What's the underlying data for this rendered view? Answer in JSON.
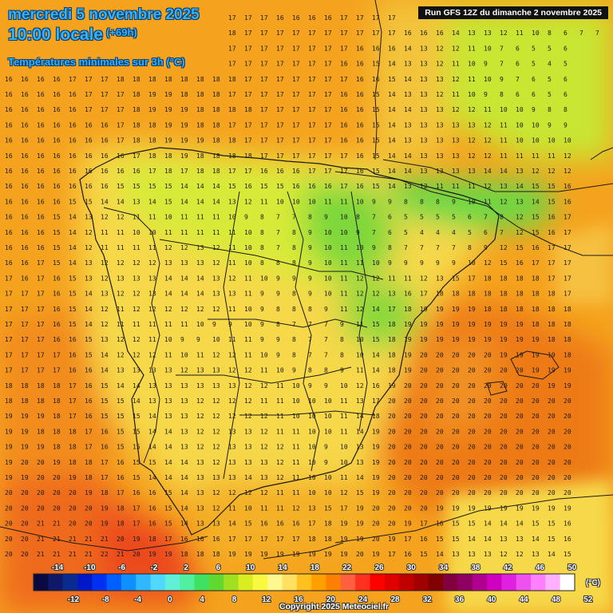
{
  "header": {
    "date": "mercredi 5 novembre 2025",
    "time": "10:00 locale",
    "lead": "(+69h)",
    "parameter": "Températures minimales sur 3h (°C)",
    "run": "Run GFS 12Z du dimanche 2 novembre 2025"
  },
  "footer": {
    "copyright": "Copyright 2025 Meteociel.fr"
  },
  "legend": {
    "unit": "(°C)",
    "colors": [
      "#0a0a40",
      "#10186a",
      "#0a2a90",
      "#0018c8",
      "#0030f0",
      "#0060ff",
      "#1090ff",
      "#30b8ff",
      "#50d8ff",
      "#60f0d8",
      "#50f0a0",
      "#40e060",
      "#60d830",
      "#a0e020",
      "#d8ee20",
      "#f8f840",
      "#fff890",
      "#ffe060",
      "#ffc020",
      "#ffa000",
      "#ff8000",
      "#ff6040",
      "#ff3020",
      "#ff0000",
      "#e00000",
      "#c00000",
      "#a00000",
      "#800000",
      "#800040",
      "#900060",
      "#b00090",
      "#d000c0",
      "#e020e0",
      "#f050f0",
      "#ff80ff",
      "#ffb0ff",
      "#ffffff"
    ],
    "top_labels": [
      "-14",
      "-10",
      "-6",
      "-2",
      "2",
      "6",
      "10",
      "14",
      "18",
      "22",
      "26",
      "30",
      "34",
      "38",
      "42",
      "46",
      "50"
    ],
    "bottom_labels": [
      "-12",
      "-8",
      "-4",
      "0",
      "4",
      "8",
      "12",
      "16",
      "20",
      "24",
      "28",
      "32",
      "36",
      "40",
      "44",
      "48",
      "52"
    ]
  },
  "grid_values": [
    "15 16 16 16 16 17 17 17 17 17 17 17 17 17 17 17 17 16 16 16 16 17 17 17 17 16 16 16 14 13 12 11 10 8 7 7 6 6 7 7",
    "15 15 16 16 16 16 17 17 17 17 17 18 18 18 18 17 17 17 17 17 17 17 17 17 17 16 16 16 14 13 13 12 11 10 8 6 7 7 6 7",
    "16 16 16 16 17 17 17 18 18 18 18 18 18 17 17 17 17 17 17 17 17 17 16 16 16 14 13 12 12 11 10 7 6 5 5 6",
    "16 16 16 17 17 17 18 18 18 18 18 18 17 17 17 17 17 17 17 17 17 16 16 15 14 13 13 12 11 10 9 7 6 5 4 5",
    "16 16 16 16 17 17 17 18 18 18 18 18 18 18 18 17 17 17 17 17 17 17 16 16 15 14 13 13 12 11 10 9 7 6 5 6",
    "16 16 16 16 16 17 17 17 18 19 19 18 18 18 17 17 17 17 17 17 17 16 16 15 14 13 13 12 11 10 9 8 6 6 5 6",
    "16 16 16 16 16 17 17 17 18 19 19 19 18 18 18 18 17 17 17 17 17 16 16 15 14 14 13 13 12 12 11 10 10 9 8 8",
    "16 16 16 16 16 16 16 17 18 18 19 19 18 18 17 17 17 17 17 17 17 16 16 15 14 13 13 13 13 13 12 11 10 10 9 9",
    "16 16 16 16 16 16 16 17 18 18 19 19 19 18 18 17 17 17 17 17 17 16 16 15 14 13 13 13 13 12 12 11 10 10 10 10",
    "16 16 16 16 16 16 16 16 17 18 18 19 18 18 18 18 17 17 17 17 17 17 16 15 14 14 13 13 13 12 12 11 11 11 11 12",
    "16 16 16 16 16 16 16 16 16 17 18 17 18 18 17 17 16 16 16 17 17 17 16 15 14 14 13 13 13 13 14 14 13 12 12 12",
    "16 16 16 16 16 16 16 15 15 15 15 14 14 14 15 16 15 15 16 16 16 17 16 15 14 13 12 11 11 11 12 13 14 15 15 16",
    "16 16 16 16 15 15 14 14 13 14 15 14 14 14 13 12 11 10 10 10 11 11 10 9 9 8 8 8 9 10 11 12 13 14 15 16",
    "16 16 16 15 14 13 12 12 11 11 10 11 11 11 10 9 8 7 7 8 9 10 8 7 6 5 5 5 5 6 7 8 12 15 16 17",
    "16 16 16 15 14 12 11 11 10 10 11 11 11 11 11 10 8 7 8 9 10 10 9 7 6 5 4 4 4 5 6 7 12 15 16 17",
    "16 16 16 15 14 12 11 11 11 11 12 12 13 12 11 10 8 7 8 9 10 11 10 9 8 7 7 7 7 8 9 12 15 16 17 17",
    "16 16 17 15 14 13 12 12 12 12 13 13 13 12 11 10 8 8 8 9 10 11 11 10 9 9 9 9 9 10 12 15 16 17 17 17",
    "17 16 17 16 15 13 12 13 13 13 14 14 14 13 12 11 10 9 9 9 10 11 12 12 11 11 12 13 15 17 18 18 18 18 17 17",
    "17 17 17 16 15 14 13 12 12 13 14 14 14 13 13 11 9 9 8 9 10 11 12 12 13 16 17 18 18 18 18 18 18 18 18 17",
    "17 17 17 16 15 14 12 11 12 12 12 12 12 12 11 10 9 8 8 8 9 11 12 14 17 18 19 19 19 19 18 18 18 18 18 18",
    "17 17 17 16 15 14 12 11 11 11 11 11 10 9 9 10 9 8 7 7 7 9 11 15 18 19 19 19 19 19 19 19 19 18 18 18",
    "17 17 17 16 16 15 13 12 12 11 10 9 9 10 11 11 9 9 8 7 7 8 10 15 18 19 19 19 19 19 19 19 19 19 18 18",
    "17 17 17 17 16 15 14 12 12 12 11 10 11 12 12 11 10 9 8 7 7 8 10 14 18 19 20 20 20 20 20 19 19 19 19 18",
    "17 17 17 17 16 16 14 13 13 13 13 12 13 13 12 12 11 10 9 8 8 9 11 14 18 19 20 20 20 20 20 20 20 19 19 19",
    "18 18 18 18 17 16 15 14 14 13 13 13 13 13 13 12 12 11 10 9 9 10 12 16 19 20 20 20 20 20 20 20 20 20 19 19",
    "18 18 18 18 17 16 15 15 14 13 13 13 12 12 12 12 11 11 10 10 10 11 13 17 20 20 20 20 20 20 20 20 20 20 20 20",
    "19 19 19 18 17 16 15 15 15 14 13 13 12 12 12 12 12 11 10 10 10 11 14 18 20 20 20 20 20 20 20 20 20 20 20 20",
    "19 19 18 18 18 17 16 15 15 14 14 13 12 12 13 13 12 11 11 10 10 11 14 19 20 20 20 20 20 20 20 20 20 20 20 20",
    "19 19 19 18 18 17 16 15 15 14 14 13 12 12 13 13 12 12 11 10 9 10 13 19 20 20 20 20 20 20 20 20 20 20 20 20",
    "19 20 20 19 18 18 17 16 15 15 14 14 13 12 13 13 13 12 11 10 9 10 13 19 20 20 20 20 20 20 20 20 20 20 20 20",
    "19 19 20 20 19 18 17 16 15 14 14 14 13 13 13 14 13 12 11 10 10 11 14 19 20 20 20 20 20 20 20 20 20 20 20 20",
    "20 20 20 20 20 19 18 17 16 16 15 14 13 12 12 12 12 11 11 10 10 12 15 19 20 20 20 20 20 20 20 20 20 20 20 20",
    "20 20 20 20 20 20 19 18 17 16 15 14 13 12 11 10 11 11 12 13 15 17 19 20 20 20 20 19 19 19 19 19 19 19 19 19",
    "20 20 21 21 20 20 19 18 17 16 15 14 13 13 14 15 16 16 16 17 18 19 19 20 20 19 17 16 15 15 14 14 14 15 15 16",
    "20 20 21 21 21 21 21 20 19 18 17 16 16 16 17 17 17 17 17 18 18 19 19 20 19 17 16 15 15 14 14 13 13 14 15 16",
    "20 20 21 21 21 21 22 21 20 19 19 18 18 18 19 19 19 19 19 19 19 19 20 19 17 16 15 14 13 13 13 12 12 13 14 15",
    "21 21 21 21 22 22 22 21 21 20 20 19 19 19 20 20 20 20 20 20 20 20 19 17 15 14 13 13 12 12 12 11 11 12 13 14",
    "21 21 21 21 22 22 22 22 21 21 20 20 20 20 20 20 20 20 20 20 20 20 18 16 14 13 12 12 12 11 11 11 11 12 12 13",
    "21 21 21 21 22 22 22 22 21 21 21 21 21 21 21 21 21 20 19 18 17 16 15 14 13 13 12 12 11 11 11 11 11 12 12 12"
  ]
}
